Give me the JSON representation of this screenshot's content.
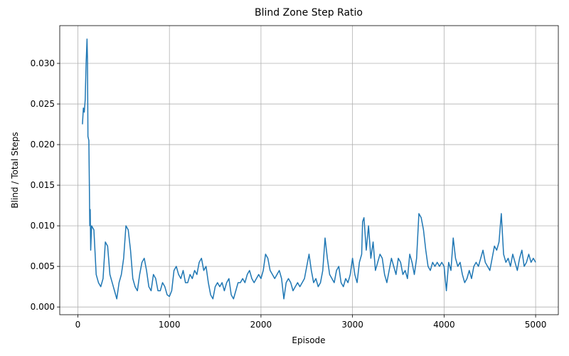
{
  "chart_data": {
    "type": "line",
    "title": "Blind Zone Step Ratio",
    "x_label": "Episode",
    "y_label": "Blind / Total Steps",
    "xlim": [
      -198,
      5248
    ],
    "ylim": [
      -0.00095,
      0.03465
    ],
    "xticks": [
      0,
      1000,
      2000,
      3000,
      4000,
      5000
    ],
    "yticks": [
      {
        "value": 0,
        "label": "0.000"
      },
      {
        "value": 0.005,
        "label": "0.005"
      },
      {
        "value": 0.01,
        "label": "0.010"
      },
      {
        "value": 0.015,
        "label": "0.015"
      },
      {
        "value": 0.02,
        "label": "0.020"
      },
      {
        "value": 0.025,
        "label": "0.025"
      },
      {
        "value": 0.03,
        "label": "0.030"
      }
    ],
    "grid": true,
    "x": [
      50,
      60,
      70,
      80,
      90,
      100,
      105,
      110,
      120,
      125,
      130,
      135,
      140,
      150,
      175,
      200,
      225,
      250,
      275,
      300,
      325,
      350,
      375,
      400,
      425,
      450,
      475,
      500,
      525,
      550,
      575,
      600,
      625,
      650,
      675,
      700,
      725,
      750,
      775,
      800,
      825,
      850,
      875,
      900,
      925,
      950,
      975,
      1000,
      1025,
      1050,
      1075,
      1100,
      1125,
      1150,
      1175,
      1200,
      1225,
      1250,
      1275,
      1300,
      1325,
      1350,
      1375,
      1400,
      1425,
      1450,
      1475,
      1500,
      1525,
      1550,
      1575,
      1600,
      1625,
      1650,
      1675,
      1700,
      1725,
      1750,
      1775,
      1800,
      1825,
      1850,
      1875,
      1900,
      1925,
      1950,
      1975,
      2000,
      2025,
      2050,
      2075,
      2100,
      2125,
      2150,
      2175,
      2200,
      2225,
      2250,
      2275,
      2300,
      2325,
      2350,
      2375,
      2400,
      2425,
      2450,
      2475,
      2500,
      2525,
      2550,
      2575,
      2600,
      2625,
      2650,
      2675,
      2700,
      2725,
      2750,
      2775,
      2800,
      2825,
      2850,
      2875,
      2900,
      2925,
      2950,
      2975,
      3000,
      3025,
      3050,
      3075,
      3100,
      3110,
      3125,
      3150,
      3175,
      3200,
      3225,
      3250,
      3275,
      3300,
      3325,
      3350,
      3375,
      3400,
      3425,
      3450,
      3475,
      3500,
      3525,
      3550,
      3575,
      3600,
      3625,
      3650,
      3675,
      3700,
      3725,
      3750,
      3775,
      3800,
      3825,
      3850,
      3875,
      3900,
      3925,
      3950,
      3975,
      4000,
      4025,
      4050,
      4075,
      4100,
      4125,
      4150,
      4175,
      4200,
      4225,
      4250,
      4275,
      4300,
      4325,
      4350,
      4375,
      4400,
      4425,
      4450,
      4475,
      4500,
      4525,
      4550,
      4575,
      4600,
      4625,
      4650,
      4675,
      4700,
      4725,
      4750,
      4775,
      4800,
      4825,
      4850,
      4875,
      4900,
      4925,
      4950,
      4975,
      5000
    ],
    "series": [
      {
        "name": "Blind Zone Step Ratio",
        "color": "#1f77b4",
        "values": [
          0.0225,
          0.0245,
          0.024,
          0.0255,
          0.03,
          0.033,
          0.0305,
          0.021,
          0.0205,
          0.0155,
          0.01,
          0.012,
          0.007,
          0.01,
          0.0095,
          0.004,
          0.003,
          0.0025,
          0.0035,
          0.008,
          0.0075,
          0.004,
          0.003,
          0.002,
          0.001,
          0.003,
          0.004,
          0.006,
          0.01,
          0.0095,
          0.007,
          0.0035,
          0.0025,
          0.002,
          0.004,
          0.0055,
          0.006,
          0.0045,
          0.0025,
          0.002,
          0.004,
          0.0035,
          0.002,
          0.002,
          0.003,
          0.0025,
          0.0015,
          0.0013,
          0.002,
          0.0045,
          0.005,
          0.004,
          0.0035,
          0.0045,
          0.003,
          0.003,
          0.004,
          0.0035,
          0.0045,
          0.004,
          0.0055,
          0.006,
          0.0045,
          0.005,
          0.003,
          0.0015,
          0.001,
          0.0025,
          0.003,
          0.0025,
          0.003,
          0.002,
          0.003,
          0.0035,
          0.0015,
          0.001,
          0.002,
          0.003,
          0.003,
          0.0035,
          0.003,
          0.004,
          0.0045,
          0.0035,
          0.003,
          0.0035,
          0.004,
          0.0035,
          0.0045,
          0.0065,
          0.006,
          0.0045,
          0.004,
          0.0035,
          0.004,
          0.0045,
          0.0035,
          0.001,
          0.003,
          0.0035,
          0.003,
          0.002,
          0.0025,
          0.003,
          0.0025,
          0.003,
          0.0035,
          0.005,
          0.0065,
          0.0045,
          0.003,
          0.0035,
          0.0025,
          0.003,
          0.0045,
          0.0085,
          0.006,
          0.004,
          0.0035,
          0.003,
          0.0045,
          0.005,
          0.003,
          0.0025,
          0.0035,
          0.003,
          0.004,
          0.006,
          0.004,
          0.003,
          0.0055,
          0.0065,
          0.0105,
          0.011,
          0.007,
          0.01,
          0.006,
          0.008,
          0.0045,
          0.0055,
          0.0065,
          0.006,
          0.004,
          0.003,
          0.0045,
          0.006,
          0.005,
          0.004,
          0.006,
          0.0055,
          0.004,
          0.0045,
          0.0035,
          0.0065,
          0.0055,
          0.004,
          0.006,
          0.0115,
          0.011,
          0.0095,
          0.007,
          0.005,
          0.0045,
          0.0055,
          0.005,
          0.0055,
          0.005,
          0.0055,
          0.005,
          0.002,
          0.0055,
          0.0045,
          0.0085,
          0.006,
          0.005,
          0.0055,
          0.004,
          0.003,
          0.0035,
          0.0045,
          0.0035,
          0.005,
          0.0055,
          0.005,
          0.006,
          0.007,
          0.0055,
          0.005,
          0.0045,
          0.006,
          0.0075,
          0.007,
          0.008,
          0.0115,
          0.0065,
          0.0055,
          0.006,
          0.005,
          0.0065,
          0.0055,
          0.0045,
          0.006,
          0.007,
          0.005,
          0.0055,
          0.0065,
          0.0055,
          0.006,
          0.0055
        ]
      }
    ]
  }
}
